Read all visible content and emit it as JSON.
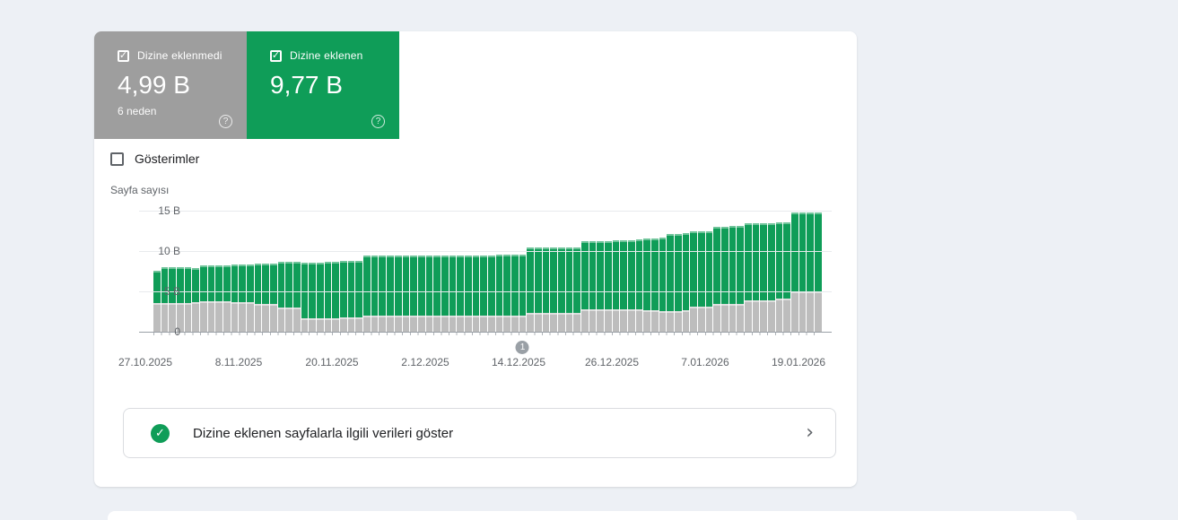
{
  "cards": [
    {
      "label": "Dizine eklenmedi",
      "value": "4,99 B",
      "sub": "6 neden",
      "checked": true,
      "color": "#9e9e9e",
      "check_glyph": "✓",
      "help_glyph": "?"
    },
    {
      "label": "Dizine eklenen",
      "value": "9,77 B",
      "sub": "",
      "checked": true,
      "color": "#0f9d58",
      "check_glyph": "✓",
      "help_glyph": "?"
    }
  ],
  "impressions_toggle": {
    "label": "Gösterimler",
    "checked": false
  },
  "chart_data": {
    "type": "bar",
    "stacked": true,
    "ylabel": "Sayfa sayısı",
    "ylim": [
      0,
      15
    ],
    "y_ticks": [
      "15 B",
      "10 B",
      "5 B",
      "0"
    ],
    "grid": true,
    "x_tick_labels": [
      "27.10.2025",
      "8.11.2025",
      "20.11.2025",
      "2.12.2025",
      "14.12.2025",
      "26.12.2025",
      "7.01.2026",
      "19.01.2026"
    ],
    "x_tick_every_n_bars": 12,
    "unit": "B (thousand pages)",
    "annotation": {
      "label": "1",
      "bar_index": 47
    },
    "series": [
      {
        "name": "Dizine eklenmedi",
        "color": "#bdbdbd",
        "values": [
          3.6,
          3.6,
          3.6,
          3.6,
          3.6,
          3.7,
          3.8,
          3.8,
          3.8,
          3.8,
          3.7,
          3.7,
          3.7,
          3.4,
          3.4,
          3.4,
          3.0,
          3.0,
          3.0,
          1.7,
          1.7,
          1.7,
          1.7,
          1.7,
          1.8,
          1.8,
          1.8,
          2.0,
          2.0,
          2.0,
          2.0,
          2.0,
          2.0,
          2.0,
          2.0,
          2.0,
          2.0,
          2.0,
          2.0,
          2.0,
          2.0,
          2.0,
          2.0,
          2.0,
          2.0,
          2.0,
          2.0,
          2.0,
          2.3,
          2.3,
          2.3,
          2.3,
          2.3,
          2.3,
          2.3,
          2.8,
          2.8,
          2.8,
          2.8,
          2.8,
          2.8,
          2.8,
          2.8,
          2.7,
          2.7,
          2.6,
          2.6,
          2.6,
          2.7,
          3.1,
          3.1,
          3.1,
          3.5,
          3.5,
          3.5,
          3.5,
          3.9,
          3.9,
          3.9,
          3.9,
          4.1,
          4.1,
          5.0,
          5.0,
          5.0,
          4.99
        ]
      },
      {
        "name": "Dizine eklenen",
        "color": "#0f9d58",
        "values": [
          4.0,
          4.4,
          4.4,
          4.4,
          4.4,
          4.2,
          4.4,
          4.4,
          4.4,
          4.4,
          4.6,
          4.6,
          4.6,
          5.0,
          5.0,
          5.1,
          5.7,
          5.7,
          5.7,
          6.9,
          6.9,
          6.9,
          7.0,
          7.0,
          7.0,
          7.0,
          7.0,
          7.4,
          7.4,
          7.5,
          7.5,
          7.5,
          7.5,
          7.5,
          7.5,
          7.5,
          7.5,
          7.5,
          7.5,
          7.4,
          7.4,
          7.4,
          7.4,
          7.5,
          7.6,
          7.6,
          7.6,
          7.6,
          8.1,
          8.1,
          8.2,
          8.2,
          8.2,
          8.2,
          8.2,
          8.4,
          8.4,
          8.4,
          8.4,
          8.5,
          8.5,
          8.5,
          8.6,
          8.9,
          8.9,
          9.1,
          9.5,
          9.5,
          9.5,
          9.4,
          9.4,
          9.4,
          9.5,
          9.5,
          9.6,
          9.6,
          9.5,
          9.5,
          9.5,
          9.6,
          9.5,
          9.5,
          9.8,
          9.8,
          9.8,
          9.77
        ]
      }
    ]
  },
  "action_row": {
    "label": "Dizine eklenen sayfalarla ilgili verileri göster",
    "chevron_glyph": "›",
    "check_glyph": "✓"
  }
}
